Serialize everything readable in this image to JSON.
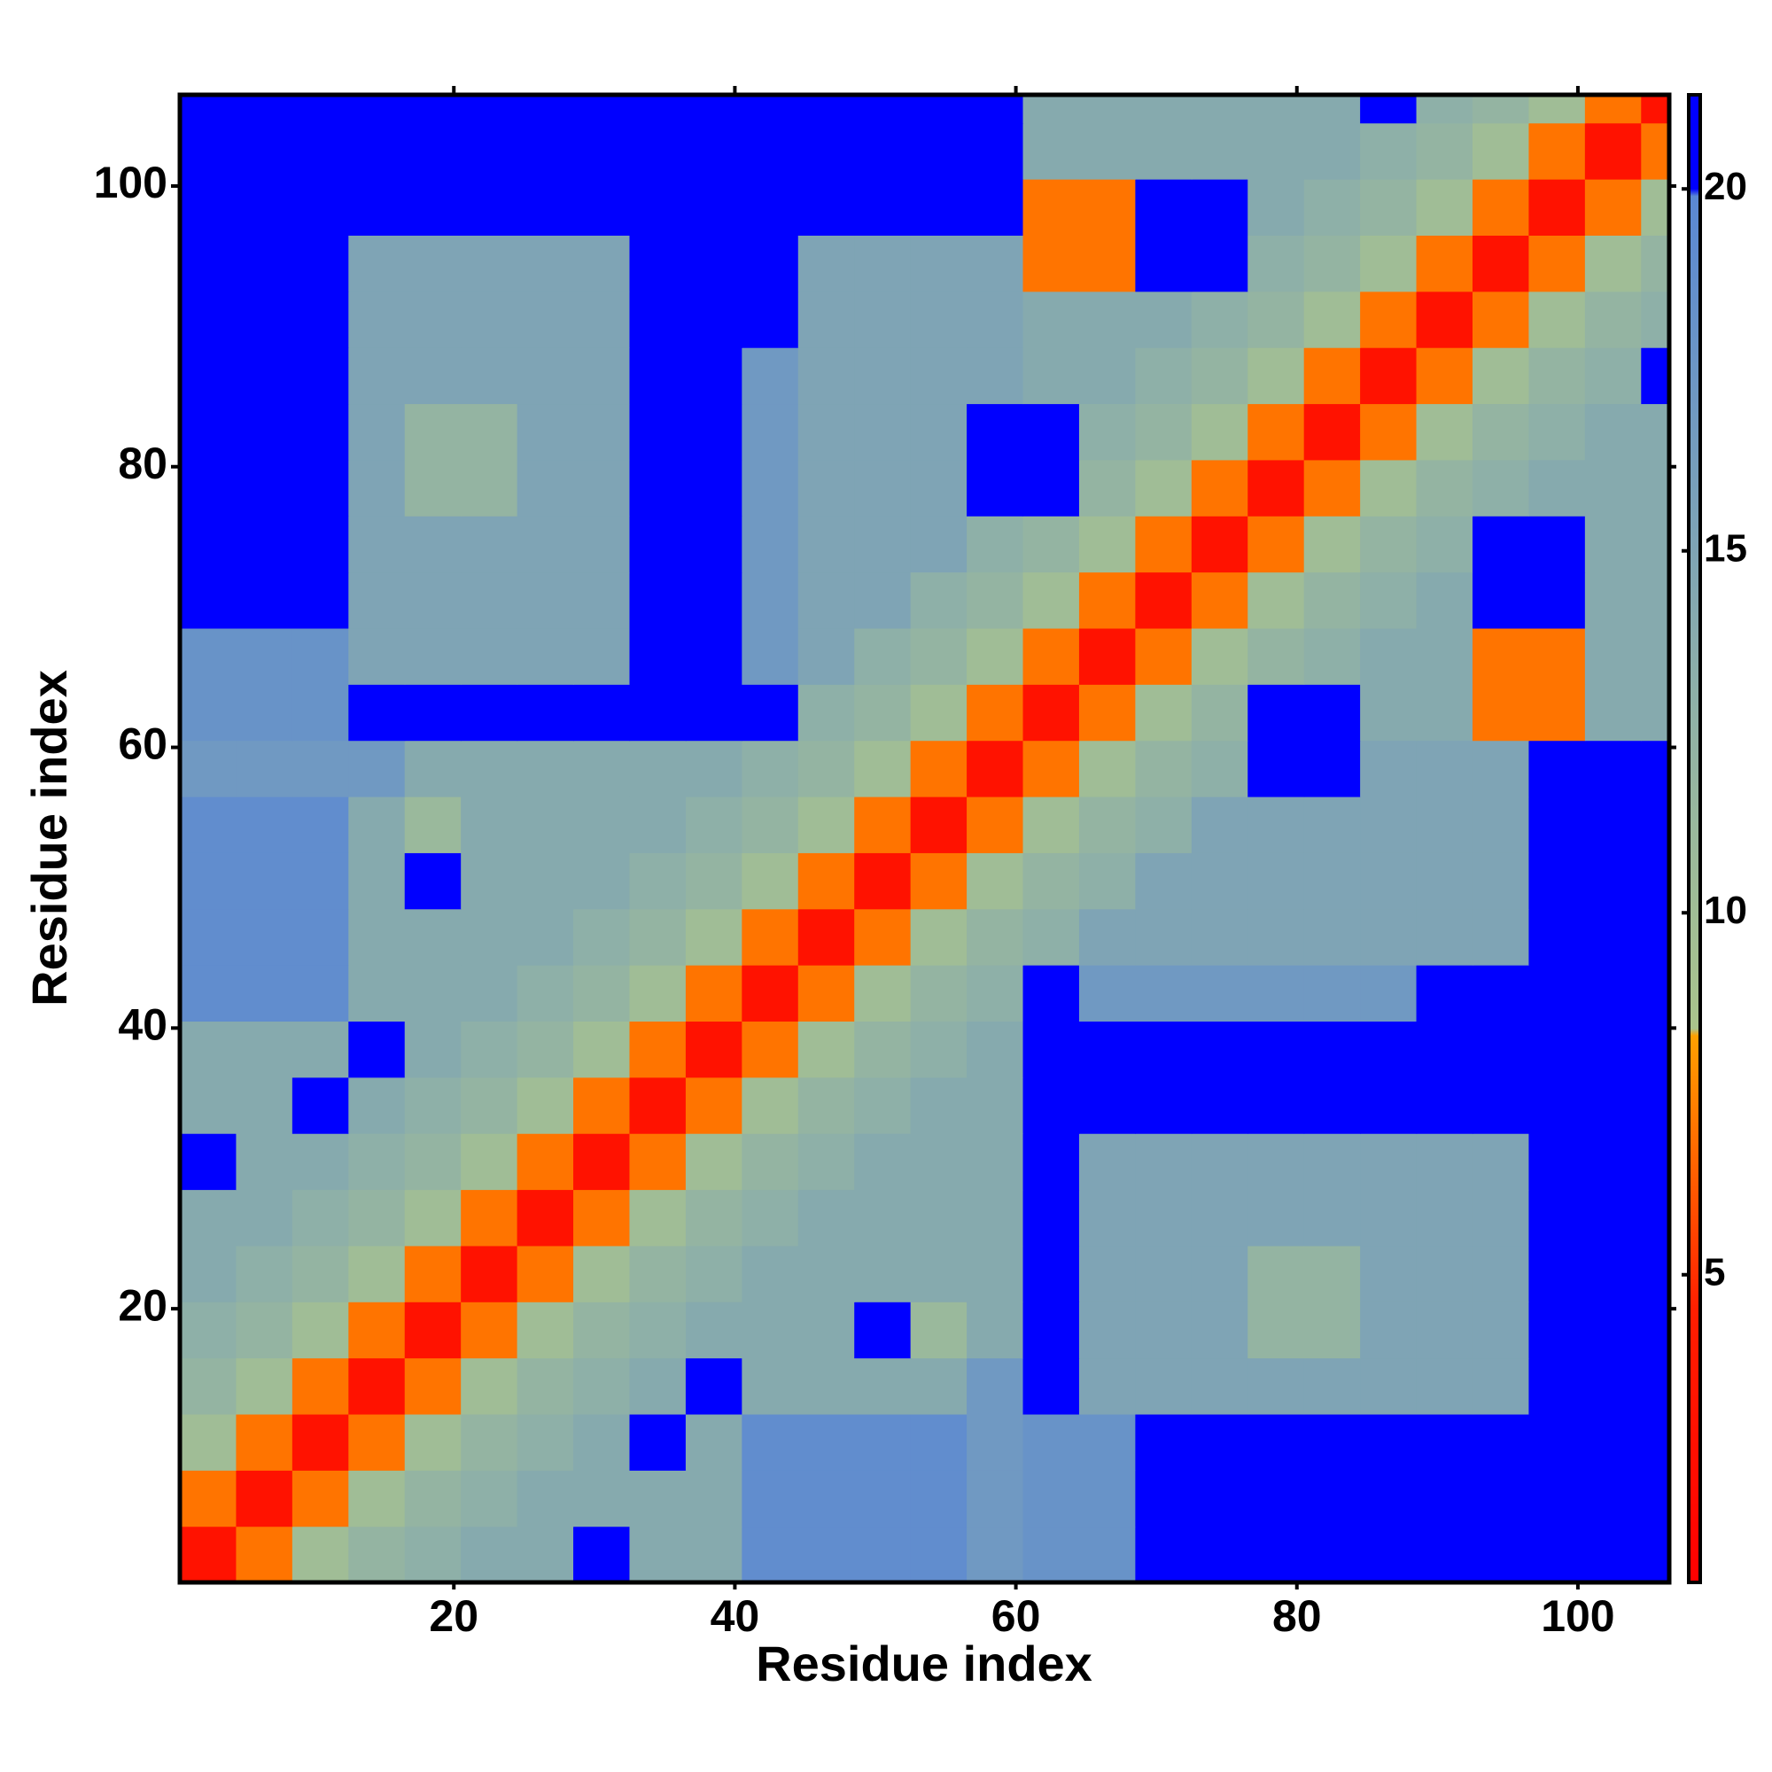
{
  "chart_data": {
    "type": "heatmap",
    "xlabel": "Residue index",
    "ylabel": "Residue index",
    "x": [
      2.5,
      6.5,
      10.5,
      14.5,
      18.5,
      22.5,
      26.5,
      30.5,
      34.5,
      38.5,
      42.5,
      46.5,
      50.5,
      54.5,
      58.5,
      62.5,
      66.5,
      70.5,
      74.5,
      78.5,
      82.5,
      86.5,
      90.5,
      94.5,
      98.5,
      102.5,
      106.5
    ],
    "y": [
      2.5,
      6.5,
      10.5,
      14.5,
      18.5,
      22.5,
      26.5,
      30.5,
      34.5,
      38.5,
      42.5,
      46.5,
      50.5,
      54.5,
      58.5,
      62.5,
      66.5,
      70.5,
      74.5,
      78.5,
      82.5,
      86.5,
      90.5,
      94.5,
      98.5,
      102.5,
      106.5
    ],
    "z": [
      [
        3,
        7,
        10,
        12,
        13,
        14,
        14,
        21,
        14,
        14,
        19,
        19,
        19,
        19,
        17,
        18,
        18,
        21,
        21,
        21,
        21,
        21,
        21,
        21,
        21,
        21,
        21
      ],
      [
        7,
        3,
        7,
        10,
        12,
        13,
        14,
        14,
        14,
        14,
        19,
        19,
        19,
        19,
        17,
        18,
        18,
        21,
        21,
        21,
        21,
        21,
        21,
        21,
        21,
        21,
        21
      ],
      [
        10,
        7,
        3,
        7,
        10,
        12,
        13,
        14,
        21,
        14,
        19,
        19,
        19,
        19,
        17,
        18,
        18,
        21,
        21,
        21,
        21,
        21,
        21,
        21,
        21,
        21,
        21
      ],
      [
        12,
        10,
        7,
        3,
        7,
        10,
        12,
        13,
        14,
        21,
        14,
        14,
        14,
        14,
        17,
        21,
        15,
        15,
        15,
        15,
        15,
        15,
        15,
        15,
        21,
        21,
        21
      ],
      [
        13,
        12,
        10,
        7,
        3,
        7,
        10,
        12,
        13,
        14,
        14,
        14,
        21,
        11,
        14,
        21,
        15,
        15,
        15,
        12,
        12,
        15,
        15,
        15,
        21,
        21,
        21
      ],
      [
        14,
        13,
        12,
        10,
        7,
        3,
        7,
        10,
        12,
        13,
        14,
        14,
        14,
        14,
        14,
        21,
        15,
        15,
        15,
        12,
        12,
        15,
        15,
        15,
        21,
        21,
        21
      ],
      [
        14,
        14,
        13,
        12,
        10,
        7,
        3,
        7,
        10,
        12,
        13,
        14,
        14,
        14,
        14,
        21,
        15,
        15,
        15,
        15,
        15,
        15,
        15,
        15,
        21,
        21,
        21
      ],
      [
        21,
        14,
        14,
        13,
        12,
        10,
        7,
        3,
        7,
        10,
        12,
        13,
        14,
        14,
        14,
        21,
        15,
        15,
        15,
        15,
        15,
        15,
        15,
        15,
        21,
        21,
        21
      ],
      [
        14,
        14,
        21,
        14,
        13,
        12,
        10,
        7,
        3,
        7,
        10,
        12,
        13,
        14,
        14,
        21,
        21,
        21,
        21,
        21,
        21,
        21,
        21,
        21,
        21,
        21,
        21
      ],
      [
        14,
        14,
        14,
        21,
        14,
        13,
        12,
        10,
        7,
        3,
        7,
        10,
        12,
        13,
        14,
        21,
        21,
        21,
        21,
        21,
        21,
        21,
        21,
        21,
        21,
        21,
        21
      ],
      [
        19,
        19,
        19,
        14,
        14,
        14,
        13,
        12,
        10,
        7,
        3,
        7,
        10,
        12,
        13,
        21,
        17,
        17,
        17,
        17,
        17,
        17,
        21,
        21,
        21,
        21,
        21
      ],
      [
        19,
        19,
        19,
        14,
        14,
        14,
        14,
        13,
        12,
        10,
        7,
        3,
        7,
        10,
        12,
        13,
        15,
        15,
        15,
        15,
        15,
        15,
        15,
        15,
        21,
        21,
        21
      ],
      [
        19,
        19,
        19,
        14,
        21,
        14,
        14,
        14,
        13,
        12,
        10,
        7,
        3,
        7,
        10,
        12,
        13,
        15,
        15,
        15,
        15,
        15,
        15,
        15,
        21,
        21,
        21
      ],
      [
        19,
        19,
        19,
        14,
        11,
        14,
        14,
        14,
        14,
        13,
        12,
        10,
        7,
        3,
        7,
        10,
        12,
        13,
        15,
        15,
        15,
        15,
        15,
        15,
        21,
        21,
        21
      ],
      [
        17,
        17,
        17,
        17,
        14,
        14,
        14,
        14,
        14,
        14,
        13,
        12,
        10,
        7,
        3,
        7,
        10,
        12,
        13,
        21,
        21,
        15,
        15,
        15,
        21,
        21,
        21
      ],
      [
        18,
        18,
        18,
        21,
        21,
        21,
        21,
        21,
        21,
        21,
        21,
        13,
        12,
        10,
        7,
        3,
        7,
        10,
        12,
        21,
        21,
        14,
        14,
        7,
        7,
        14,
        14
      ],
      [
        18,
        18,
        18,
        15,
        15,
        15,
        15,
        15,
        21,
        21,
        17,
        15,
        13,
        12,
        10,
        7,
        3,
        7,
        10,
        12,
        13,
        14,
        14,
        7,
        7,
        14,
        14
      ],
      [
        21,
        21,
        21,
        15,
        15,
        15,
        15,
        15,
        21,
        21,
        17,
        15,
        15,
        13,
        12,
        10,
        7,
        3,
        7,
        10,
        12,
        13,
        14,
        21,
        21,
        14,
        14
      ],
      [
        21,
        21,
        21,
        15,
        15,
        15,
        15,
        15,
        21,
        21,
        17,
        15,
        15,
        15,
        13,
        12,
        10,
        7,
        3,
        7,
        10,
        12,
        13,
        21,
        21,
        14,
        14
      ],
      [
        21,
        21,
        21,
        15,
        12,
        12,
        15,
        15,
        21,
        21,
        17,
        15,
        15,
        15,
        21,
        21,
        12,
        10,
        7,
        3,
        7,
        10,
        12,
        13,
        14,
        14,
        14
      ],
      [
        21,
        21,
        21,
        15,
        12,
        12,
        15,
        15,
        21,
        21,
        17,
        15,
        15,
        15,
        21,
        21,
        13,
        12,
        10,
        7,
        3,
        7,
        10,
        12,
        13,
        14,
        14
      ],
      [
        21,
        21,
        21,
        15,
        15,
        15,
        15,
        15,
        21,
        21,
        17,
        15,
        15,
        15,
        15,
        14,
        14,
        13,
        12,
        10,
        7,
        3,
        7,
        10,
        12,
        13,
        21
      ],
      [
        21,
        21,
        21,
        15,
        15,
        15,
        15,
        15,
        21,
        21,
        21,
        15,
        15,
        15,
        15,
        14,
        14,
        14,
        13,
        12,
        10,
        7,
        3,
        7,
        10,
        12,
        13
      ],
      [
        21,
        21,
        21,
        15,
        15,
        15,
        15,
        15,
        21,
        21,
        21,
        15,
        15,
        15,
        15,
        7,
        7,
        21,
        21,
        13,
        12,
        10,
        7,
        3,
        7,
        10,
        12
      ],
      [
        21,
        21,
        21,
        21,
        21,
        21,
        21,
        21,
        21,
        21,
        21,
        21,
        21,
        21,
        21,
        7,
        7,
        21,
        21,
        14,
        13,
        12,
        10,
        7,
        3,
        7,
        10
      ],
      [
        21,
        21,
        21,
        21,
        21,
        21,
        21,
        21,
        21,
        21,
        21,
        21,
        21,
        21,
        21,
        14,
        14,
        14,
        14,
        14,
        14,
        13,
        12,
        10,
        7,
        3,
        7
      ],
      [
        21,
        21,
        21,
        21,
        21,
        21,
        21,
        21,
        21,
        21,
        21,
        21,
        21,
        21,
        21,
        14,
        14,
        14,
        14,
        14,
        14,
        21,
        13,
        12,
        10,
        7,
        3
      ]
    ],
    "xlim": [
      0.5,
      106.5
    ],
    "ylim": [
      0.5,
      106.5
    ],
    "xticks": [
      20,
      40,
      60,
      80,
      100
    ],
    "yticks": [
      20,
      40,
      60,
      80,
      100
    ],
    "clim": [
      0.75,
      21.3
    ],
    "cticks": [
      5,
      10,
      15,
      20
    ],
    "colorscale": [
      [
        0.75,
        "#ff0000"
      ],
      [
        4.5,
        "#ff1e00"
      ],
      [
        8.3,
        "#ffa000"
      ],
      [
        8.4,
        "#aac48c"
      ],
      [
        13,
        "#8eb0a8"
      ],
      [
        19.9,
        "#5a88d4"
      ],
      [
        20,
        "#0000ff"
      ],
      [
        21.3,
        "#0000ff"
      ]
    ]
  }
}
